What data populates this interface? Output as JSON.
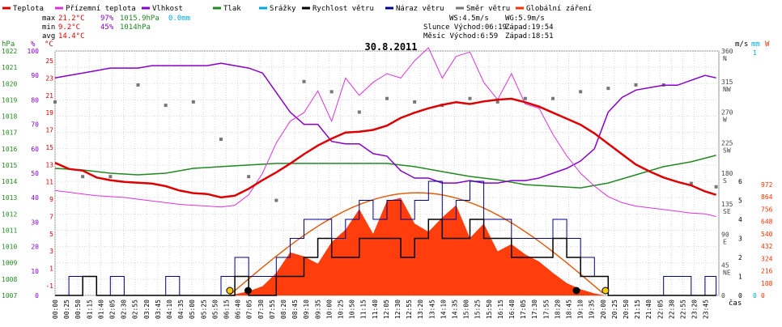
{
  "chart_data": {
    "type": "line",
    "title": "30.8.2011",
    "legend": [
      {
        "name": "Teplota",
        "color": "#dd0000"
      },
      {
        "name": "Přízemní teplota",
        "color": "#dd33dd"
      },
      {
        "name": "Vlhkost",
        "color": "#8800cc"
      },
      {
        "name": "Tlak",
        "color": "#228822"
      },
      {
        "name": "Srážky",
        "color": "#00aadd"
      },
      {
        "name": "Rychlost větru",
        "color": "#000000"
      },
      {
        "name": "Náraz větru",
        "color": "#000088"
      },
      {
        "name": "Směr větru",
        "color": "#777777"
      },
      {
        "name": "Globální záření",
        "color": "#ff3300"
      }
    ],
    "stats": {
      "max_label": "max",
      "max_temp": "21.2°C",
      "max_hum": "97%",
      "max_press": "1015.9hPa",
      "max_rain": "0.0mm",
      "min_label": "min",
      "min_temp": "9.2°C",
      "min_hum": "45%",
      "min_press": "1014hPa",
      "avg_label": "avg",
      "avg_temp": "14.4°C"
    },
    "wind_info": {
      "ws": "WS:4.5m/s",
      "wg": "WG:5.9m/s"
    },
    "sun_info": {
      "sun": "Slunce Východ:06:19",
      "sun_set": "Západ:19:54",
      "moon": "Měsíc Východ:6:59",
      "moon_set": "Západ:18:51"
    },
    "axis_units": {
      "hpa": "hPa",
      "pct": "%",
      "degc": "°C",
      "ms": "m/s",
      "mm": "mm",
      "w": "W",
      "xlabel": "čas"
    },
    "pressure_ticks": [
      "1022",
      "1021",
      "1020",
      "1019",
      "1018",
      "1017",
      "1016",
      "1015",
      "1014",
      "1013",
      "1012",
      "1011",
      "1010",
      "1009",
      "1008",
      "1007"
    ],
    "humidity_ticks": [
      "100",
      "90",
      "80",
      "70",
      "60",
      "50",
      "40",
      "30",
      "20",
      "10",
      "0"
    ],
    "temperature_ticks": [
      "25",
      "23",
      "21",
      "19",
      "17",
      "15",
      "13",
      "11",
      "9",
      "7",
      "5",
      "3",
      "1",
      "-1"
    ],
    "direction_ticks": [
      {
        "deg": "360",
        "dir": "N"
      },
      {
        "deg": "315",
        "dir": "NW"
      },
      {
        "deg": "270",
        "dir": "W"
      },
      {
        "deg": "225",
        "dir": "SW"
      },
      {
        "deg": "180",
        "dir": "S"
      },
      {
        "deg": "135",
        "dir": "SE"
      },
      {
        "deg": "90",
        "dir": "E"
      },
      {
        "deg": "45",
        "dir": "NE"
      },
      {
        "deg": "0",
        "dir": ""
      }
    ],
    "wind_ticks": [
      "6",
      "5",
      "4",
      "3",
      "2",
      "1",
      "0"
    ],
    "rain_ticks": [
      "1",
      "0"
    ],
    "radiation_ticks": [
      "972",
      "864",
      "756",
      "648",
      "540",
      "432",
      "324",
      "216",
      "108",
      "0"
    ],
    "x_ticks": [
      "00:00",
      "00:25",
      "00:50",
      "01:15",
      "01:40",
      "02:05",
      "02:30",
      "02:55",
      "03:20",
      "03:45",
      "04:10",
      "04:35",
      "05:00",
      "05:25",
      "05:50",
      "06:15",
      "06:40",
      "07:05",
      "07:30",
      "07:55",
      "08:20",
      "08:45",
      "09:10",
      "09:35",
      "10:00",
      "10:25",
      "10:50",
      "11:15",
      "11:40",
      "12:05",
      "12:30",
      "12:55",
      "13:20",
      "13:45",
      "14:10",
      "14:35",
      "15:00",
      "15:25",
      "15:50",
      "16:15",
      "16:40",
      "17:05",
      "17:30",
      "17:55",
      "18:20",
      "18:45",
      "19:10",
      "19:35",
      "20:00",
      "20:25",
      "20:50",
      "21:15",
      "21:40",
      "22:05",
      "22:30",
      "22:55",
      "23:20",
      "23:45"
    ],
    "x_range_hours": [
      0,
      24
    ],
    "series": [
      {
        "name": "Teplota",
        "unit": "°C",
        "x": [
          0,
          0.5,
          1,
          1.5,
          2,
          2.5,
          3,
          3.5,
          4,
          4.5,
          5,
          5.5,
          6,
          6.5,
          7,
          7.5,
          8,
          8.5,
          9,
          9.5,
          10,
          10.5,
          11,
          11.5,
          12,
          12.5,
          13,
          13.5,
          14,
          14.5,
          15,
          15.5,
          16,
          16.5,
          17,
          17.5,
          18,
          18.5,
          19,
          19.5,
          20,
          20.5,
          21,
          21.5,
          22,
          22.5,
          23,
          23.5,
          23.9
        ],
        "y": [
          13.2,
          12.5,
          12.3,
          11.5,
          11.2,
          11.0,
          10.9,
          10.8,
          10.5,
          10.0,
          9.7,
          9.6,
          9.2,
          9.4,
          10.2,
          11.2,
          12.1,
          13.1,
          14.2,
          15.2,
          16.0,
          16.7,
          16.8,
          17.0,
          17.5,
          18.4,
          19.0,
          19.5,
          19.9,
          20.2,
          20.0,
          20.3,
          20.5,
          20.6,
          20.2,
          19.7,
          19.0,
          18.3,
          17.6,
          16.6,
          15.4,
          14.2,
          13.0,
          12.2,
          11.5,
          11.0,
          10.6,
          9.9,
          9.5
        ]
      },
      {
        "name": "Přízemní teplota",
        "unit": "°C",
        "x": [
          0,
          0.5,
          1,
          1.5,
          2,
          2.5,
          3,
          3.5,
          4,
          4.5,
          5,
          5.5,
          6,
          6.5,
          7,
          7.5,
          8,
          8.5,
          9,
          9.5,
          10,
          10.5,
          11,
          11.5,
          12,
          12.5,
          13,
          13.5,
          14,
          14.5,
          15,
          15.5,
          16,
          16.5,
          17,
          17.5,
          18,
          18.5,
          19,
          19.5,
          20,
          20.5,
          21,
          21.5,
          22,
          22.5,
          23,
          23.5,
          23.9
        ],
        "y": [
          10.0,
          9.8,
          9.6,
          9.4,
          9.3,
          9.2,
          9.0,
          8.8,
          8.6,
          8.4,
          8.3,
          8.2,
          8.1,
          8.3,
          9.5,
          12.0,
          15.5,
          18.0,
          19.0,
          21.5,
          18.0,
          23.0,
          21.0,
          22.5,
          23.5,
          23.0,
          25.0,
          26.5,
          23.0,
          25.5,
          26.0,
          22.5,
          20.5,
          23.5,
          20.0,
          19.5,
          16.5,
          14.0,
          12.0,
          10.5,
          9.3,
          8.6,
          8.2,
          8.0,
          7.8,
          7.6,
          7.4,
          7.3,
          7.0
        ]
      },
      {
        "name": "Vlhkost",
        "unit": "%",
        "x": [
          0,
          0.5,
          1,
          1.5,
          2,
          2.5,
          3,
          3.5,
          4,
          4.5,
          5,
          5.5,
          6,
          6.5,
          7,
          7.5,
          8,
          8.5,
          9,
          9.5,
          10,
          10.5,
          11,
          11.5,
          12,
          12.5,
          13,
          13.5,
          14,
          14.5,
          15,
          15.5,
          16,
          16.5,
          17,
          17.5,
          18,
          18.5,
          19,
          19.5,
          20,
          20.5,
          21,
          21.5,
          22,
          22.5,
          23,
          23.5,
          23.9
        ],
        "y": [
          89,
          90,
          91,
          92,
          93,
          93,
          93,
          94,
          94,
          94,
          94,
          94,
          95,
          94,
          93,
          91,
          83,
          75,
          70,
          70,
          63,
          62,
          62,
          58,
          57,
          51,
          48,
          48,
          46,
          46,
          47,
          46,
          46,
          47,
          47,
          48,
          50,
          52,
          55,
          60,
          75,
          81,
          84,
          85,
          86,
          86,
          88,
          90,
          89
        ]
      },
      {
        "name": "Tlak",
        "unit": "hPa",
        "x": [
          0,
          1,
          2,
          3,
          4,
          5,
          6,
          7,
          8,
          9,
          10,
          11,
          12,
          13,
          14,
          15,
          16,
          17,
          18,
          19,
          20,
          21,
          22,
          23,
          23.9
        ],
        "y": [
          1014.8,
          1014.7,
          1014.5,
          1014.4,
          1014.5,
          1014.8,
          1014.9,
          1015.0,
          1015.1,
          1015.1,
          1015.1,
          1015.1,
          1015.1,
          1014.9,
          1014.6,
          1014.3,
          1014.1,
          1013.8,
          1013.7,
          1013.6,
          1013.9,
          1014.4,
          1014.9,
          1015.2,
          1015.6
        ]
      },
      {
        "name": "Rychlost větru",
        "unit": "m/s",
        "x": [
          0,
          0.5,
          1,
          1.5,
          2,
          2.5,
          3,
          3.5,
          4,
          4.5,
          5,
          5.5,
          6,
          6.5,
          7,
          7.5,
          8,
          8.5,
          9,
          9.5,
          10,
          10.5,
          11,
          11.5,
          12,
          12.5,
          13,
          13.5,
          14,
          14.5,
          15,
          15.5,
          16,
          16.5,
          17,
          17.5,
          18,
          18.5,
          19,
          19.5,
          20,
          20.5,
          21,
          21.5,
          22,
          22.5,
          23,
          23.5,
          23.9
        ],
        "y": [
          0,
          0,
          1,
          0,
          0,
          0,
          0,
          0,
          0,
          0,
          0,
          0,
          0,
          1,
          0,
          0,
          1,
          1,
          2,
          3,
          2,
          2,
          3,
          3,
          3,
          2,
          3,
          4,
          3,
          3,
          4,
          3,
          3,
          2,
          2,
          2,
          3,
          2,
          1,
          1,
          0,
          0,
          0,
          0,
          0,
          0,
          0,
          0,
          0
        ]
      },
      {
        "name": "Náraz větru",
        "unit": "m/s",
        "x": [
          0,
          0.5,
          1,
          1.5,
          2,
          2.5,
          3,
          3.5,
          4,
          4.5,
          5,
          5.5,
          6,
          6.5,
          7,
          7.5,
          8,
          8.5,
          9,
          9.5,
          10,
          10.5,
          11,
          11.5,
          12,
          12.5,
          13,
          13.5,
          14,
          14.5,
          15,
          15.5,
          16,
          16.5,
          17,
          17.5,
          18,
          18.5,
          19,
          19.5,
          20,
          20.5,
          21,
          21.5,
          22,
          22.5,
          23,
          23.5,
          23.9
        ],
        "y": [
          0,
          1,
          1,
          0,
          1,
          0,
          0,
          0,
          1,
          0,
          0,
          0,
          1,
          2,
          1,
          1,
          2,
          3,
          4,
          4,
          3,
          4,
          5,
          4,
          5,
          4,
          5,
          6,
          4,
          5,
          6,
          4,
          4,
          3,
          3,
          3,
          4,
          3,
          2,
          1,
          0,
          0,
          0,
          0,
          1,
          1,
          0,
          1,
          0
        ]
      },
      {
        "name": "Směr větru",
        "unit": "°",
        "x": [
          0,
          1,
          2,
          3,
          4,
          5,
          6,
          7,
          8,
          9,
          10,
          11,
          12,
          13,
          14,
          15,
          16,
          17,
          18,
          19,
          20,
          21,
          22,
          23,
          23.9
        ],
        "y": [
          285,
          175,
          175,
          310,
          280,
          285,
          230,
          175,
          140,
          315,
          300,
          270,
          290,
          285,
          280,
          290,
          285,
          290,
          290,
          300,
          305,
          310,
          310,
          165,
          160
        ]
      },
      {
        "name": "Globální záření",
        "unit": "W/m²",
        "x": [
          6.3,
          7,
          7.5,
          8,
          8.5,
          9,
          9.5,
          10,
          10.5,
          11,
          11.5,
          12,
          12.5,
          13,
          13.5,
          14,
          14.5,
          15,
          15.5,
          16,
          16.5,
          17,
          17.5,
          18,
          18.5,
          19,
          19.5,
          19.9
        ],
        "y": [
          0,
          40,
          90,
          220,
          420,
          380,
          310,
          520,
          640,
          840,
          600,
          920,
          950,
          700,
          620,
          760,
          880,
          560,
          700,
          430,
          500,
          400,
          330,
          220,
          120,
          60,
          20,
          0
        ]
      }
    ]
  }
}
